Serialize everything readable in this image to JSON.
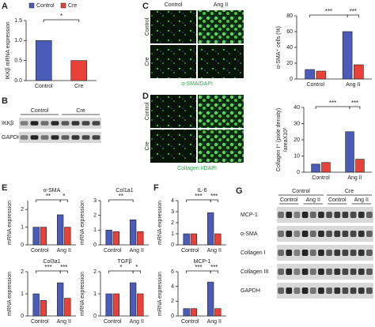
{
  "panel_letters": [
    "A",
    "B",
    "C",
    "D",
    "E",
    "F",
    "G"
  ],
  "blot_b": {
    "groups": [
      "Control",
      "Cre"
    ],
    "rows": [
      "IKKβ",
      "GAPDH"
    ]
  },
  "micro_c": {
    "cols": [
      "Control",
      "Ang II"
    ],
    "rows": [
      "Control",
      "Cre"
    ],
    "caption": "α-SMA/DAPI"
  },
  "micro_d": {
    "rows": [
      "Control",
      "Cre"
    ],
    "caption": "Collagen I/DAPI"
  },
  "blot_g": {
    "groups": [
      "Control",
      "Cre"
    ],
    "subgroups": [
      "Control",
      "Ang II",
      "Control",
      "Ang II"
    ],
    "rows": [
      "MCP-1",
      "α-SMA",
      "Collagen I",
      "Collagen III",
      "GAPDH"
    ]
  },
  "chart_data": [
    {
      "type": "bar",
      "y_label": [
        "IKKβ mRNA expression"
      ],
      "categories": [
        "Control",
        "Cre"
      ],
      "values": [
        1.0,
        0.5
      ],
      "colors": [
        "#4a5bb8",
        "#e8413a"
      ],
      "legend": [
        {
          "name": "Control",
          "color": "#4a5bb8"
        },
        {
          "name": "Cre",
          "color": "#e8413a"
        }
      ],
      "ylim": [
        0,
        1.5
      ],
      "yticks": [
        {
          "value": 0,
          "label": "0.0"
        },
        {
          "value": 0.5,
          "label": "0.5"
        },
        {
          "value": 1,
          "label": "1.0"
        },
        {
          "value": 1.5,
          "label": "1.5"
        }
      ],
      "significance": [
        "*"
      ]
    },
    {
      "type": "grouped_bar",
      "y_label": [
        "α-SMA⁺ cells (%)"
      ],
      "categories": [
        "Control",
        "Ang II"
      ],
      "series": [
        {
          "color": "#4a5bb8",
          "values": [
            12,
            60
          ]
        },
        {
          "color": "#e8413a",
          "values": [
            10,
            18
          ]
        }
      ],
      "ylim": [
        0,
        80
      ],
      "yticks": [
        0,
        20,
        40,
        60,
        80
      ],
      "significance": [
        "***",
        "***"
      ]
    },
    {
      "type": "grouped_bar",
      "y_label": [
        "Collagen I⁺ (pixle density)",
        "/areaX10³"
      ],
      "categories": [
        "Control",
        "Ang II"
      ],
      "series": [
        {
          "color": "#4a5bb8",
          "values": [
            5,
            25
          ]
        },
        {
          "color": "#e8413a",
          "values": [
            6,
            8
          ]
        }
      ],
      "ylim": [
        0,
        40
      ],
      "yticks": [
        0,
        10,
        20,
        30,
        40
      ],
      "significance": [
        "***",
        "***"
      ]
    },
    {
      "type": "grouped_bar",
      "title": "α-SMA",
      "y_label": [
        "mRNA expression"
      ],
      "categories": [
        "Control",
        "Ang II"
      ],
      "series": [
        {
          "color": "#4a5bb8",
          "values": [
            1.0,
            1.7
          ]
        },
        {
          "color": "#e8413a",
          "values": [
            1.0,
            1.0
          ]
        }
      ],
      "ylim": [
        0,
        2.5
      ],
      "yticks": [
        0,
        1,
        2
      ],
      "significance": [
        "**",
        "*"
      ]
    },
    {
      "type": "grouped_bar",
      "title": "Col1a1",
      "y_label": [
        "mRNA expression"
      ],
      "categories": [
        "Control",
        "Ang II"
      ],
      "series": [
        {
          "color": "#4a5bb8",
          "values": [
            1.0,
            1.7
          ]
        },
        {
          "color": "#e8413a",
          "values": [
            0.9,
            0.9
          ]
        }
      ],
      "ylim": [
        0,
        3
      ],
      "yticks": [
        0,
        1,
        2,
        3
      ],
      "significance": [
        "**"
      ]
    },
    {
      "type": "grouped_bar",
      "title": "Col3a1",
      "y_label": [
        "mRNA expression"
      ],
      "categories": [
        "Control",
        "Ang II"
      ],
      "series": [
        {
          "color": "#4a5bb8",
          "values": [
            1.0,
            1.5
          ]
        },
        {
          "color": "#e8413a",
          "values": [
            0.7,
            0.8
          ]
        }
      ],
      "ylim": [
        0,
        2
      ],
      "yticks": [
        0,
        1,
        2
      ],
      "significance": [
        "***",
        "***"
      ]
    },
    {
      "type": "grouped_bar",
      "title": "TGFβ",
      "y_label": [
        "mRNA expression"
      ],
      "categories": [
        "Control",
        "Ang II"
      ],
      "series": [
        {
          "color": "#4a5bb8",
          "values": [
            1.0,
            1.5
          ]
        },
        {
          "color": "#e8413a",
          "values": [
            1.0,
            1.0
          ]
        }
      ],
      "ylim": [
        0,
        2
      ],
      "yticks": [
        0,
        1,
        2
      ],
      "significance": [
        "*",
        "*"
      ]
    },
    {
      "type": "grouped_bar",
      "title": "IL-6",
      "y_label": [
        "mRNA expression"
      ],
      "categories": [
        "Control",
        "Ang II"
      ],
      "series": [
        {
          "color": "#4a5bb8",
          "values": [
            1.0,
            2.9
          ]
        },
        {
          "color": "#e8413a",
          "values": [
            1.0,
            1.0
          ]
        }
      ],
      "ylim": [
        0,
        4
      ],
      "yticks": [
        0,
        1,
        2,
        3,
        4
      ],
      "significance": [
        "***",
        "***"
      ]
    },
    {
      "type": "grouped_bar",
      "title": "MCP-1",
      "y_label": [
        "mRNA expression"
      ],
      "categories": [
        "Control",
        "Ang II"
      ],
      "series": [
        {
          "color": "#4a5bb8",
          "values": [
            1.0,
            4.6
          ]
        },
        {
          "color": "#e8413a",
          "values": [
            1.0,
            1.0
          ]
        }
      ],
      "ylim": [
        0,
        6
      ],
      "yticks": [
        0,
        2,
        4,
        6
      ],
      "significance": [
        "***",
        "***"
      ]
    }
  ]
}
